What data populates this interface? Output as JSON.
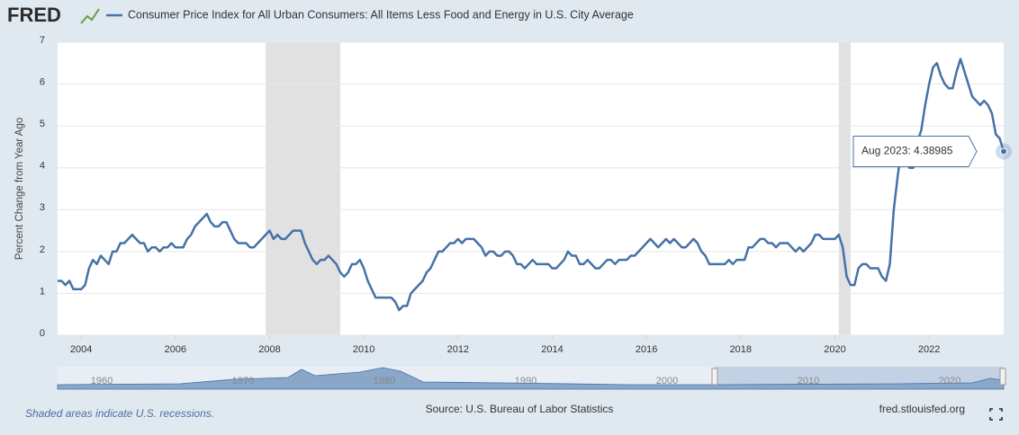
{
  "brand": "FRED",
  "chart_data": {
    "type": "line",
    "y_label": "Percent Change from Year Ago",
    "x": [
      "2003-07",
      "2003-08",
      "2003-09",
      "2003-10",
      "2003-11",
      "2003-12",
      "2004-01",
      "2004-02",
      "2004-03",
      "2004-04",
      "2004-05",
      "2004-06",
      "2004-07",
      "2004-08",
      "2004-09",
      "2004-10",
      "2004-11",
      "2004-12",
      "2005-01",
      "2005-02",
      "2005-03",
      "2005-04",
      "2005-05",
      "2005-06",
      "2005-07",
      "2005-08",
      "2005-09",
      "2005-10",
      "2005-11",
      "2005-12",
      "2006-01",
      "2006-02",
      "2006-03",
      "2006-04",
      "2006-05",
      "2006-06",
      "2006-07",
      "2006-08",
      "2006-09",
      "2006-10",
      "2006-11",
      "2006-12",
      "2007-01",
      "2007-02",
      "2007-03",
      "2007-04",
      "2007-05",
      "2007-06",
      "2007-07",
      "2007-08",
      "2007-09",
      "2007-10",
      "2007-11",
      "2007-12",
      "2008-01",
      "2008-02",
      "2008-03",
      "2008-04",
      "2008-05",
      "2008-06",
      "2008-07",
      "2008-08",
      "2008-09",
      "2008-10",
      "2008-11",
      "2008-12",
      "2009-01",
      "2009-02",
      "2009-03",
      "2009-04",
      "2009-05",
      "2009-06",
      "2009-07",
      "2009-08",
      "2009-09",
      "2009-10",
      "2009-11",
      "2009-12",
      "2010-01",
      "2010-02",
      "2010-03",
      "2010-04",
      "2010-05",
      "2010-06",
      "2010-07",
      "2010-08",
      "2010-09",
      "2010-10",
      "2010-11",
      "2010-12",
      "2011-01",
      "2011-02",
      "2011-03",
      "2011-04",
      "2011-05",
      "2011-06",
      "2011-07",
      "2011-08",
      "2011-09",
      "2011-10",
      "2011-11",
      "2011-12",
      "2012-01",
      "2012-02",
      "2012-03",
      "2012-04",
      "2012-05",
      "2012-06",
      "2012-07",
      "2012-08",
      "2012-09",
      "2012-10",
      "2012-11",
      "2012-12",
      "2013-01",
      "2013-02",
      "2013-03",
      "2013-04",
      "2013-05",
      "2013-06",
      "2013-07",
      "2013-08",
      "2013-09",
      "2013-10",
      "2013-11",
      "2013-12",
      "2014-01",
      "2014-02",
      "2014-03",
      "2014-04",
      "2014-05",
      "2014-06",
      "2014-07",
      "2014-08",
      "2014-09",
      "2014-10",
      "2014-11",
      "2014-12",
      "2015-01",
      "2015-02",
      "2015-03",
      "2015-04",
      "2015-05",
      "2015-06",
      "2015-07",
      "2015-08",
      "2015-09",
      "2015-10",
      "2015-11",
      "2015-12",
      "2016-01",
      "2016-02",
      "2016-03",
      "2016-04",
      "2016-05",
      "2016-06",
      "2016-07",
      "2016-08",
      "2016-09",
      "2016-10",
      "2016-11",
      "2016-12",
      "2017-01",
      "2017-02",
      "2017-03",
      "2017-04",
      "2017-05",
      "2017-06",
      "2017-07",
      "2017-08",
      "2017-09",
      "2017-10",
      "2017-11",
      "2017-12",
      "2018-01",
      "2018-02",
      "2018-03",
      "2018-04",
      "2018-05",
      "2018-06",
      "2018-07",
      "2018-08",
      "2018-09",
      "2018-10",
      "2018-11",
      "2018-12",
      "2019-01",
      "2019-02",
      "2019-03",
      "2019-04",
      "2019-05",
      "2019-06",
      "2019-07",
      "2019-08",
      "2019-09",
      "2019-10",
      "2019-11",
      "2019-12",
      "2020-01",
      "2020-02",
      "2020-03",
      "2020-04",
      "2020-05",
      "2020-06",
      "2020-07",
      "2020-08",
      "2020-09",
      "2020-10",
      "2020-11",
      "2020-12",
      "2021-01",
      "2021-02",
      "2021-03",
      "2021-04",
      "2021-05",
      "2021-06",
      "2021-07",
      "2021-08",
      "2021-09",
      "2021-10",
      "2021-11",
      "2021-12",
      "2022-01",
      "2022-02",
      "2022-03",
      "2022-04",
      "2022-05",
      "2022-06",
      "2022-07",
      "2022-08",
      "2022-09",
      "2022-10",
      "2022-11",
      "2022-12",
      "2023-01",
      "2023-02",
      "2023-03",
      "2023-04",
      "2023-05",
      "2023-06",
      "2023-07",
      "2023-08"
    ],
    "series": [
      {
        "name": "Consumer Price Index for All Urban Consumers: All Items Less Food and Energy in U.S. City Average",
        "color": "#4572a7",
        "values": [
          1.3,
          1.3,
          1.2,
          1.3,
          1.1,
          1.1,
          1.1,
          1.2,
          1.6,
          1.8,
          1.7,
          1.9,
          1.8,
          1.7,
          2.0,
          2.0,
          2.2,
          2.2,
          2.3,
          2.4,
          2.3,
          2.2,
          2.2,
          2.0,
          2.1,
          2.1,
          2.0,
          2.1,
          2.1,
          2.2,
          2.1,
          2.1,
          2.1,
          2.3,
          2.4,
          2.6,
          2.7,
          2.8,
          2.9,
          2.7,
          2.6,
          2.6,
          2.7,
          2.7,
          2.5,
          2.3,
          2.2,
          2.2,
          2.2,
          2.1,
          2.1,
          2.2,
          2.3,
          2.4,
          2.5,
          2.3,
          2.4,
          2.3,
          2.3,
          2.4,
          2.5,
          2.5,
          2.5,
          2.2,
          2.0,
          1.8,
          1.7,
          1.8,
          1.8,
          1.9,
          1.8,
          1.7,
          1.5,
          1.4,
          1.5,
          1.7,
          1.7,
          1.8,
          1.6,
          1.3,
          1.1,
          0.9,
          0.9,
          0.9,
          0.9,
          0.9,
          0.8,
          0.6,
          0.7,
          0.7,
          1.0,
          1.1,
          1.2,
          1.3,
          1.5,
          1.6,
          1.8,
          2.0,
          2.0,
          2.1,
          2.2,
          2.2,
          2.3,
          2.2,
          2.3,
          2.3,
          2.3,
          2.2,
          2.1,
          1.9,
          2.0,
          2.0,
          1.9,
          1.9,
          2.0,
          2.0,
          1.9,
          1.7,
          1.7,
          1.6,
          1.7,
          1.8,
          1.7,
          1.7,
          1.7,
          1.7,
          1.6,
          1.6,
          1.7,
          1.8,
          2.0,
          1.9,
          1.9,
          1.7,
          1.7,
          1.8,
          1.7,
          1.6,
          1.6,
          1.7,
          1.8,
          1.8,
          1.7,
          1.8,
          1.8,
          1.8,
          1.9,
          1.9,
          2.0,
          2.1,
          2.2,
          2.3,
          2.2,
          2.1,
          2.2,
          2.3,
          2.2,
          2.3,
          2.2,
          2.1,
          2.1,
          2.2,
          2.3,
          2.2,
          2.0,
          1.9,
          1.7,
          1.7,
          1.7,
          1.7,
          1.7,
          1.8,
          1.7,
          1.8,
          1.8,
          1.8,
          2.1,
          2.1,
          2.2,
          2.3,
          2.3,
          2.2,
          2.2,
          2.1,
          2.2,
          2.2,
          2.2,
          2.1,
          2.0,
          2.1,
          2.0,
          2.1,
          2.2,
          2.4,
          2.4,
          2.3,
          2.3,
          2.3,
          2.3,
          2.4,
          2.1,
          1.4,
          1.2,
          1.2,
          1.6,
          1.7,
          1.7,
          1.6,
          1.6,
          1.6,
          1.4,
          1.3,
          1.7,
          3.0,
          3.8,
          4.5,
          4.3,
          4.0,
          4.0,
          4.6,
          4.9,
          5.5,
          6.0,
          6.4,
          6.5,
          6.2,
          6.0,
          5.9,
          5.9,
          6.3,
          6.6,
          6.3,
          6.0,
          5.7,
          5.6,
          5.5,
          5.6,
          5.5,
          5.3,
          4.8,
          4.7,
          4.38985
        ]
      }
    ],
    "xlim": [
      "2003-07",
      "2023-08"
    ],
    "xticks": [
      {
        "value": "2004-01",
        "label": "2004"
      },
      {
        "value": "2006-01",
        "label": "2006"
      },
      {
        "value": "2008-01",
        "label": "2008"
      },
      {
        "value": "2010-01",
        "label": "2010"
      },
      {
        "value": "2012-01",
        "label": "2012"
      },
      {
        "value": "2014-01",
        "label": "2014"
      },
      {
        "value": "2016-01",
        "label": "2016"
      },
      {
        "value": "2018-01",
        "label": "2018"
      },
      {
        "value": "2020-01",
        "label": "2020"
      },
      {
        "value": "2022-01",
        "label": "2022"
      }
    ],
    "ylim": [
      0,
      7
    ],
    "yticks": [
      0,
      1,
      2,
      3,
      4,
      5,
      6,
      7
    ],
    "grid": true,
    "recessions": [
      {
        "start": "2007-12",
        "end": "2009-06"
      },
      {
        "start": "2020-02",
        "end": "2020-04"
      }
    ],
    "tooltip": "Aug 2023: 4.38985",
    "navigator_labels": [
      "1960",
      "1970",
      "1980",
      "1990",
      "2000",
      "2010",
      "2020"
    ]
  },
  "footer": {
    "note": "Shaded areas indicate U.S. recessions.",
    "source": "Source: U.S. Bureau of Labor Statistics",
    "site": "fred.stlouisfed.org"
  }
}
